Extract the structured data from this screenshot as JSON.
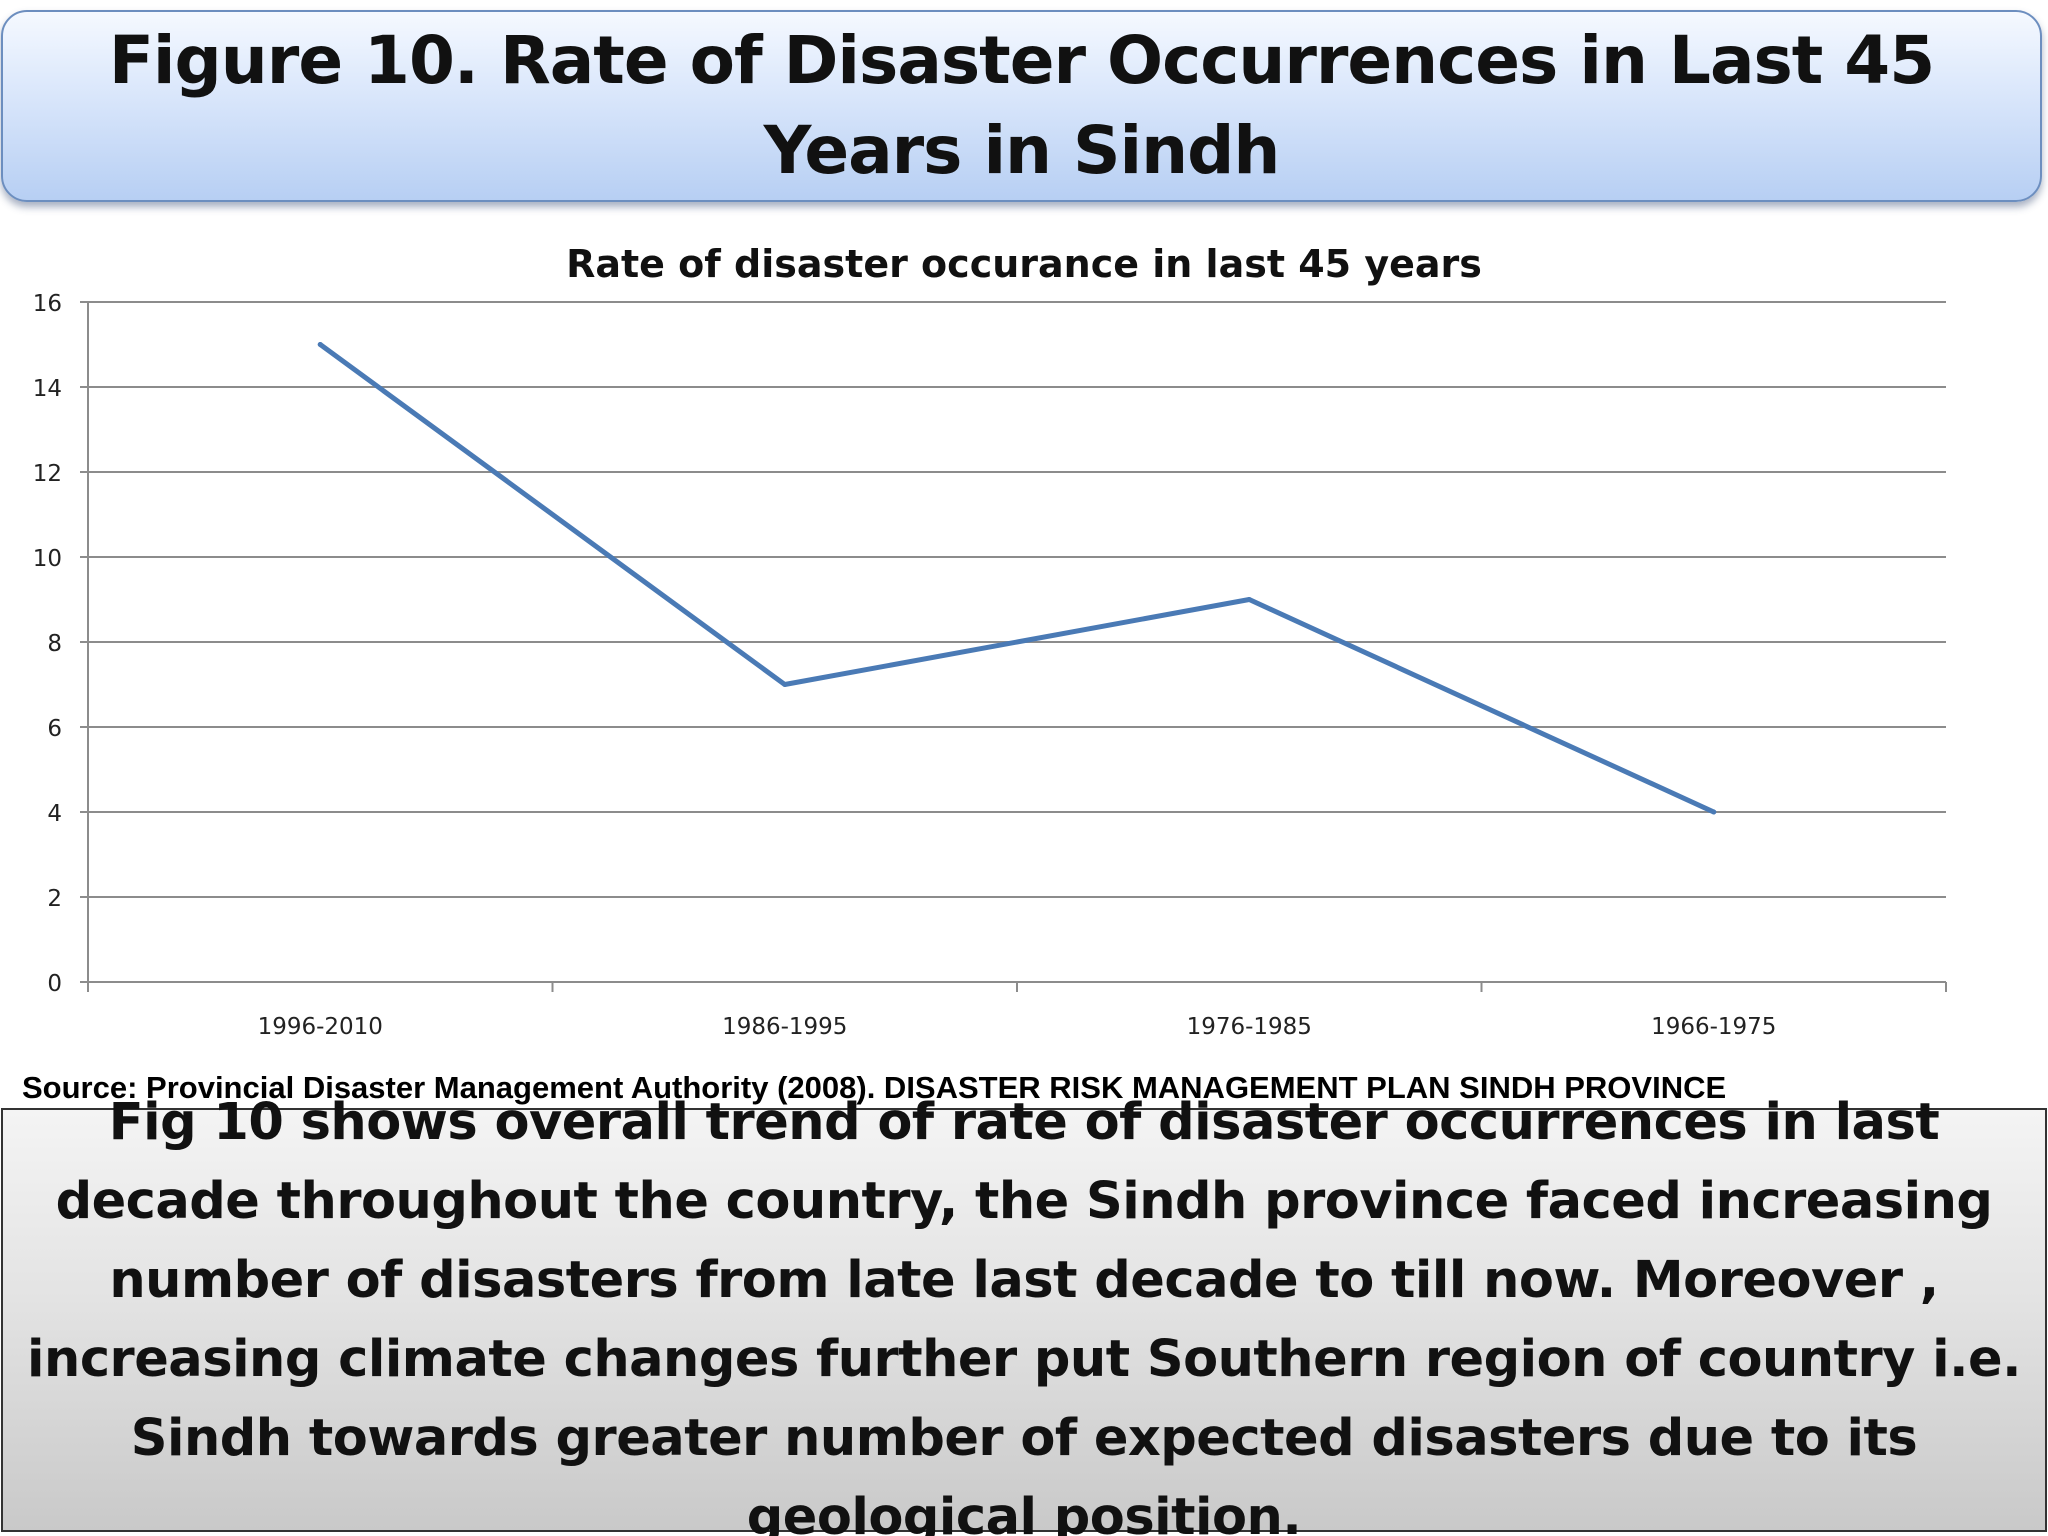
{
  "slide": {
    "title": "Figure 10. Rate of Disaster Occurrences in Last 45 Years in Sindh",
    "source": "Source: Provincial Disaster Management Authority  (2008). DISASTER RISK MANAGEMENT PLAN SINDH PROVINCE",
    "summary": "Fig 10 shows overall trend of rate of disaster occurrences in last decade throughout the country, the Sindh province faced increasing number of disasters from late last decade to till now. Moreover , increasing climate changes further put Southern region of country i.e. Sindh towards greater number of expected disasters due to its geological position."
  },
  "chart_data": {
    "type": "line",
    "title": "Rate of disaster occurance in last 45 years",
    "categories": [
      "1996-2010",
      "1986-1995",
      "1976-1985",
      "1966-1975"
    ],
    "series": [
      {
        "values": [
          15,
          7,
          9,
          4
        ],
        "color": "#4a7ab5"
      }
    ],
    "xlabel": "",
    "ylabel": "",
    "ylim": [
      0,
      16
    ],
    "yticks": [
      0,
      2,
      4,
      6,
      8,
      10,
      12,
      14,
      16
    ],
    "grid": true,
    "legend": "none"
  }
}
